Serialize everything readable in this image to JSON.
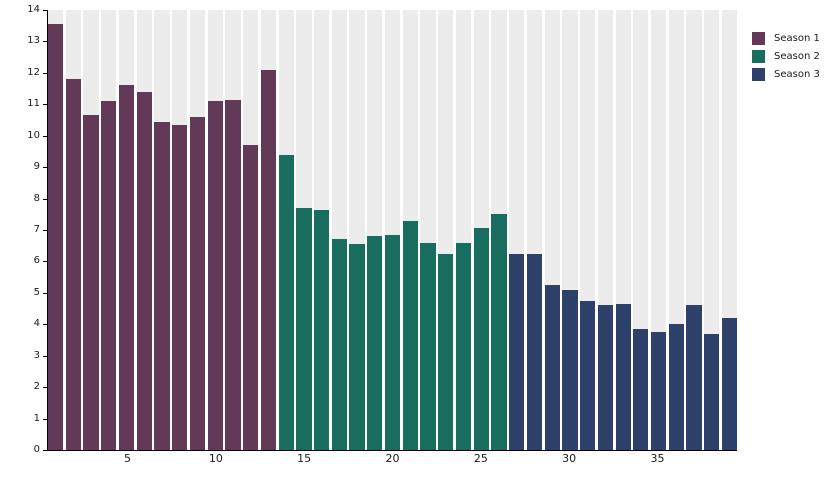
{
  "chart_data": {
    "type": "bar",
    "title": "",
    "xlabel": "",
    "ylabel": "",
    "n_bars": 39,
    "ylim": [
      0,
      14
    ],
    "y_ticks": [
      0,
      1,
      2,
      3,
      4,
      5,
      6,
      7,
      8,
      9,
      10,
      11,
      12,
      13,
      14
    ],
    "x_tick_positions": [
      5,
      10,
      15,
      20,
      25,
      30,
      35
    ],
    "grid": false,
    "legend_position": "top-right",
    "background_stripe_color": "#ececec",
    "axis_color": "#000000",
    "series": [
      {
        "name": "Season 1",
        "color": "#623a57",
        "start_index": 1,
        "values": [
          13.55,
          11.8,
          10.65,
          11.1,
          11.6,
          11.4,
          10.45,
          10.35,
          10.6,
          11.1,
          11.15,
          9.7,
          12.1
        ]
      },
      {
        "name": "Season 2",
        "color": "#186d5e",
        "start_index": 14,
        "values": [
          9.4,
          7.7,
          7.65,
          6.7,
          6.55,
          6.8,
          6.85,
          7.3,
          6.6,
          6.25,
          6.6,
          7.05,
          7.5
        ]
      },
      {
        "name": "Season 3",
        "color": "#2e416b",
        "start_index": 27,
        "values": [
          6.25,
          6.25,
          5.25,
          5.1,
          4.75,
          4.6,
          4.65,
          3.85,
          3.75,
          4.0,
          4.6,
          3.7,
          4.2
        ]
      }
    ]
  },
  "legend": {
    "items": [
      {
        "label": "Season 1",
        "color": "#623a57"
      },
      {
        "label": "Season 2",
        "color": "#186d5e"
      },
      {
        "label": "Season 3",
        "color": "#2e416b"
      }
    ]
  }
}
